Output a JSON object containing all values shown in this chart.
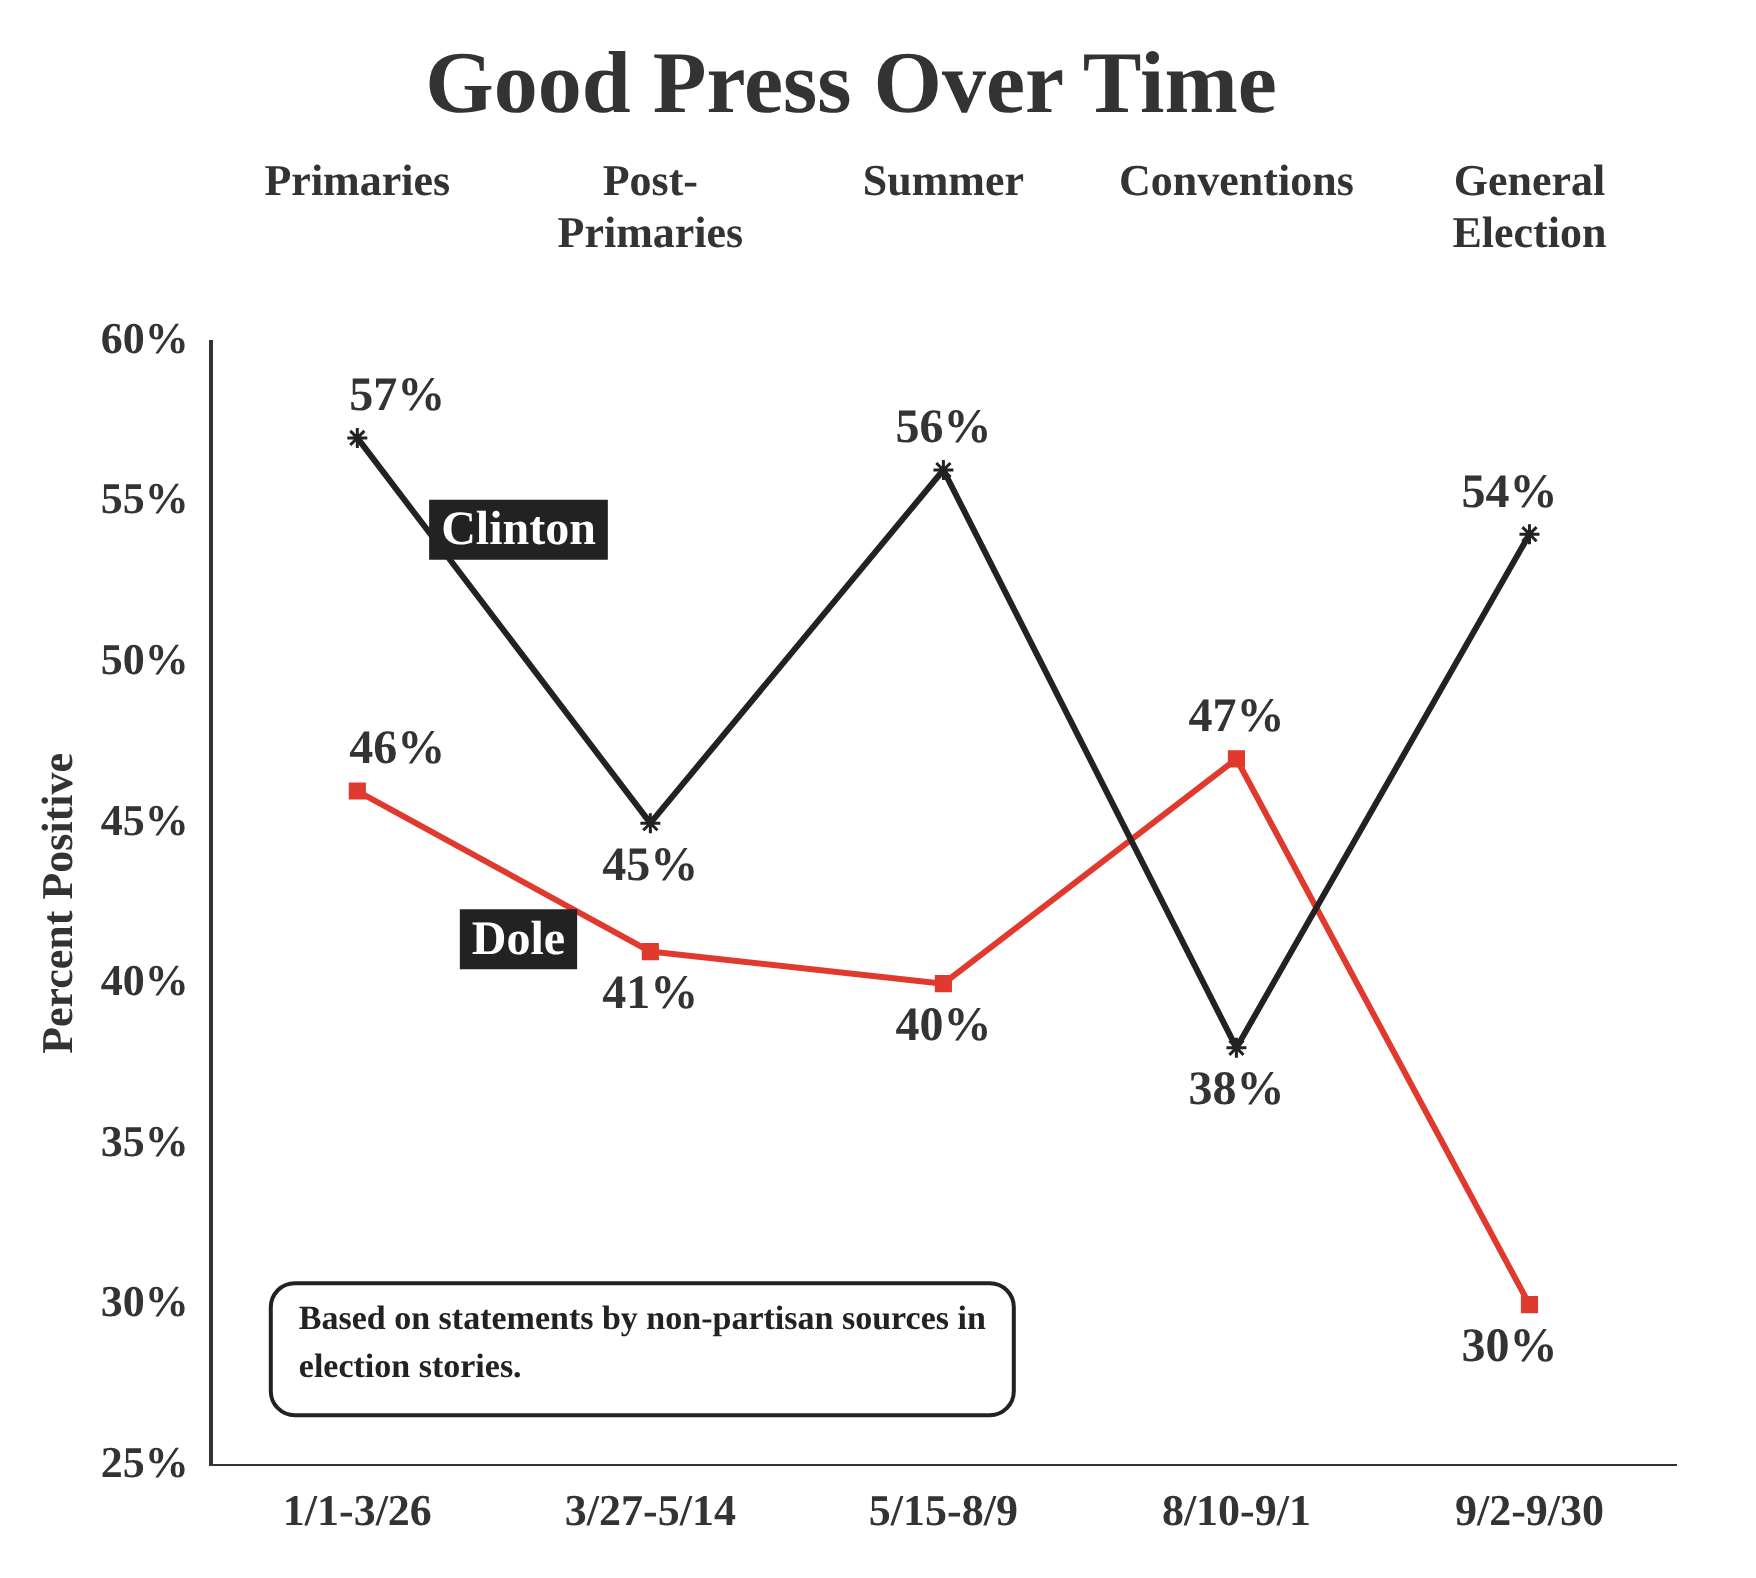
{
  "chart_data": {
    "type": "line",
    "title": "Good Press Over Time",
    "ylabel": "Percent Positive",
    "categories": [
      "1/1-3/26",
      "3/27-5/14",
      "5/15-8/9",
      "8/10-9/1",
      "9/2-9/30"
    ],
    "series": [
      {
        "name": "Clinton",
        "color": "#222222",
        "marker": "cross",
        "values": [
          57,
          45,
          56,
          38,
          54
        ],
        "value_labels": [
          "57%",
          "45%",
          "56%",
          "38%",
          "54%"
        ]
      },
      {
        "name": "Dole",
        "color": "#e03a2f",
        "marker": "square",
        "values": [
          46,
          41,
          40,
          47,
          30
        ],
        "value_labels": [
          "46%",
          "41%",
          "40%",
          "47%",
          "30%"
        ]
      }
    ],
    "ylim": [
      25,
      60
    ],
    "yticks": [
      {
        "value": 25,
        "label": "25%"
      },
      {
        "value": 30,
        "label": "30%"
      },
      {
        "value": 35,
        "label": "35%"
      },
      {
        "value": 40,
        "label": "40%"
      },
      {
        "value": 45,
        "label": "45%"
      },
      {
        "value": 50,
        "label": "50%"
      },
      {
        "value": 55,
        "label": "55%"
      },
      {
        "value": 60,
        "label": "60%"
      }
    ],
    "annotations": [
      "Primaries",
      "Post-Primaries",
      "Summer",
      "Conventions",
      "General Election",
      "Based on statements by non-partisan sources in election stories."
    ],
    "grid": false,
    "legend": false,
    "line_style": "solid"
  }
}
